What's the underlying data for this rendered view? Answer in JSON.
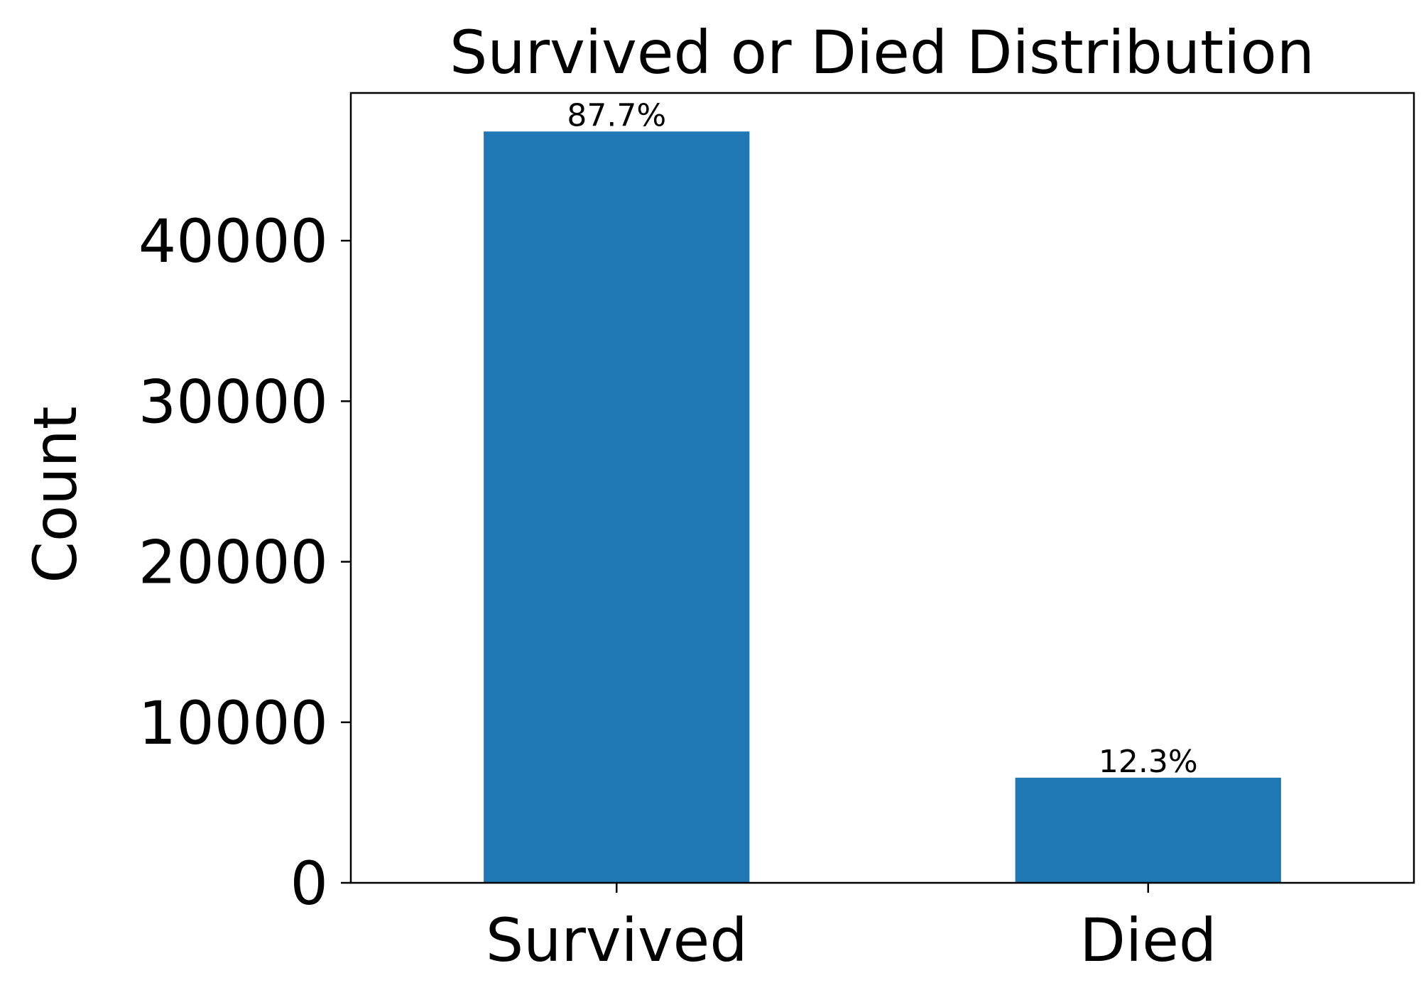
{
  "chart_data": {
    "type": "bar",
    "title": "Survived or Died Distribution",
    "xlabel": "",
    "ylabel": "Count",
    "categories": [
      "Survived",
      "Died"
    ],
    "values": [
      46800,
      6550
    ],
    "bar_labels": [
      "87.7%",
      "12.3%"
    ],
    "ylim": [
      0,
      49200
    ],
    "yticks": [
      0,
      10000,
      20000,
      30000,
      40000
    ],
    "ytick_labels": [
      "0",
      "10000",
      "20000",
      "30000",
      "40000"
    ],
    "bar_color": "#1f77b4",
    "grid": false,
    "legend": "none"
  }
}
